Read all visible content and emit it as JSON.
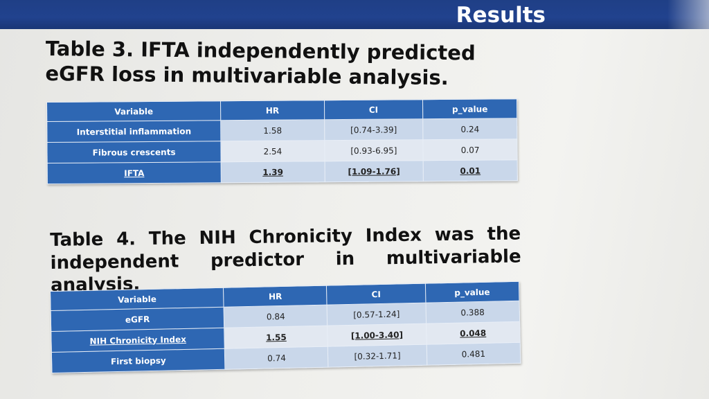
{
  "header": {
    "title": "Results"
  },
  "table3": {
    "heading": "Table 3. IFTA independently predicted eGFR loss in multivariable analysis.",
    "columns": [
      "Variable",
      "HR",
      "CI",
      "p_value"
    ],
    "rows": [
      {
        "variable": "Interstitial inflammation",
        "hr": "1.58",
        "ci": "[0.74-3.39]",
        "p": "0.24"
      },
      {
        "variable": "Fibrous crescents",
        "hr": "2.54",
        "ci": "[0.93-6.95]",
        "p": "0.07"
      },
      {
        "variable": "IFTA",
        "hr": "1.39",
        "ci": "[1.09-1.76]",
        "p": "0.01"
      }
    ]
  },
  "table4": {
    "heading": "Table 4. The NIH Chronicity Index was the independent predictor in multivariable analysis.",
    "columns": [
      "Variable",
      "HR",
      "CI",
      "p_value"
    ],
    "rows": [
      {
        "variable": "eGFR",
        "hr": "0.84",
        "ci": "[0.57-1.24]",
        "p": "0.388"
      },
      {
        "variable": "NIH Chronicity Index",
        "hr": "1.55",
        "ci": "[1.00-3.40]",
        "p": "0.048"
      },
      {
        "variable": "First biopsy",
        "hr": "0.74",
        "ci": "[0.32-1.71]",
        "p": "0.481"
      }
    ]
  }
}
